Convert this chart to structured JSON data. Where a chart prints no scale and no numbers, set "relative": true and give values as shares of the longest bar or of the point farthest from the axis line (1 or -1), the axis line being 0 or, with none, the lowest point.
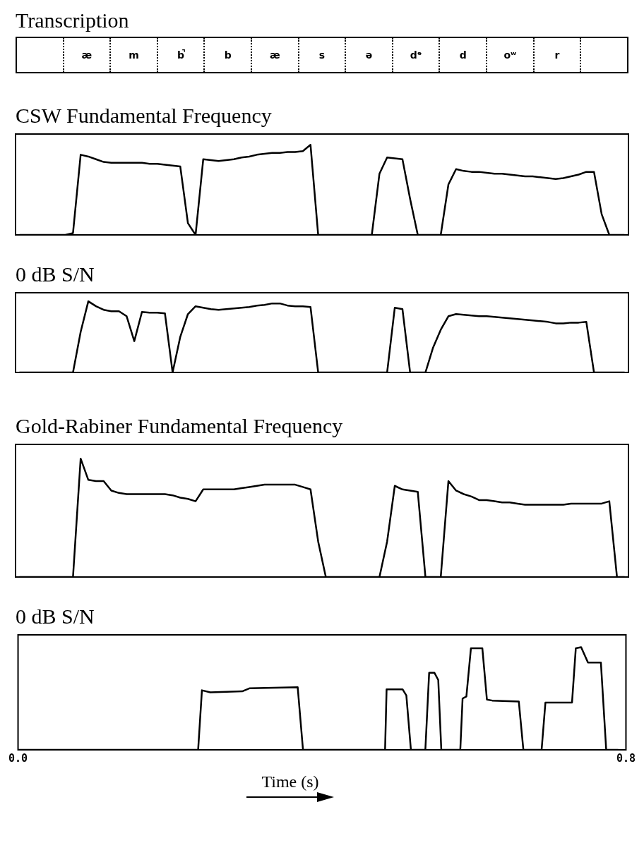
{
  "chart_data": [
    {
      "type": "other",
      "title": "Transcription",
      "annotations": [
        "æ",
        "m",
        "b̚",
        "b",
        "æ",
        "s",
        "ə",
        "dᵊ",
        "d",
        "oʷ",
        "r"
      ]
    },
    {
      "type": "line",
      "title": "CSW Fundamental Frequency",
      "relative": true,
      "categories": [
        null,
        null,
        null,
        null,
        null,
        null,
        null,
        null,
        null,
        null,
        null,
        null,
        null,
        null,
        null,
        null,
        null,
        null,
        null,
        null,
        null,
        null,
        null,
        null,
        null,
        null,
        null,
        null,
        null,
        null,
        null,
        null,
        null,
        null,
        null,
        null,
        null,
        null,
        null,
        null,
        null,
        null,
        null,
        null,
        null,
        null,
        null,
        null,
        null,
        null,
        null,
        null,
        null,
        null,
        null,
        null,
        null,
        null,
        null,
        null,
        null,
        null,
        null,
        null,
        null,
        null,
        null,
        null,
        null,
        null,
        null,
        null,
        null,
        null,
        null,
        null,
        null,
        null,
        null,
        null
      ],
      "series": [
        {
          "color": "#000000",
          "values": [
            0,
            0,
            0,
            0,
            0,
            0,
            0,
            0.02,
            0.89,
            0.87,
            0.84,
            0.81,
            0.8,
            0.8,
            0.8,
            0.8,
            0.8,
            0.79,
            0.79,
            0.78,
            0.77,
            0.76,
            0.13,
            0,
            0.84,
            0.83,
            0.82,
            0.83,
            0.84,
            0.86,
            0.87,
            0.89,
            0.9,
            0.91,
            0.91,
            0.92,
            0.92,
            0.93,
            1,
            0,
            0,
            0,
            0,
            0,
            0,
            0,
            0,
            0.68,
            0.86,
            0.85,
            0.84,
            0.4,
            0,
            0,
            0,
            0,
            0.56,
            0.73,
            0.71,
            0.7,
            0.7,
            0.69,
            0.68,
            0.68,
            0.67,
            0.66,
            0.65,
            0.65,
            0.64,
            0.63,
            0.62,
            0.63,
            0.65,
            0.67,
            0.7,
            0.7,
            0.23,
            0,
            0,
            0
          ]
        }
      ]
    },
    {
      "type": "line",
      "title": "0 dB S/N",
      "relative": true,
      "categories": [
        null,
        null,
        null,
        null,
        null,
        null,
        null,
        null,
        null,
        null,
        null,
        null,
        null,
        null,
        null,
        null,
        null,
        null,
        null,
        null,
        null,
        null,
        null,
        null,
        null,
        null,
        null,
        null,
        null,
        null,
        null,
        null,
        null,
        null,
        null,
        null,
        null,
        null,
        null,
        null,
        null,
        null,
        null,
        null,
        null,
        null,
        null,
        null,
        null,
        null,
        null,
        null,
        null,
        null,
        null,
        null,
        null,
        null,
        null,
        null,
        null,
        null,
        null,
        null,
        null,
        null,
        null,
        null,
        null,
        null,
        null,
        null,
        null,
        null,
        null,
        null,
        null,
        null,
        null,
        null
      ],
      "series": [
        {
          "color": "#000000",
          "values": [
            0,
            0,
            0,
            0,
            0,
            0,
            0,
            0,
            0.57,
            1,
            0.93,
            0.88,
            0.86,
            0.86,
            0.79,
            0.44,
            0.85,
            0.84,
            0.84,
            0.83,
            0,
            0.5,
            0.82,
            0.93,
            0.91,
            0.89,
            0.88,
            0.89,
            0.9,
            0.91,
            0.92,
            0.94,
            0.95,
            0.97,
            0.97,
            0.94,
            0.93,
            0.93,
            0.92,
            0,
            0,
            0,
            0,
            0,
            0,
            0,
            0,
            0,
            0,
            0.91,
            0.89,
            0,
            0,
            0,
            0.35,
            0.6,
            0.79,
            0.82,
            0.81,
            0.8,
            0.79,
            0.79,
            0.78,
            0.77,
            0.76,
            0.75,
            0.74,
            0.73,
            0.72,
            0.71,
            0.69,
            0.69,
            0.7,
            0.7,
            0.71,
            0,
            0,
            0,
            0,
            0
          ]
        }
      ]
    },
    {
      "type": "line",
      "title": "Gold-Rabiner Fundamental Frequency",
      "relative": true,
      "categories": [
        null,
        null,
        null,
        null,
        null,
        null,
        null,
        null,
        null,
        null,
        null,
        null,
        null,
        null,
        null,
        null,
        null,
        null,
        null,
        null,
        null,
        null,
        null,
        null,
        null,
        null,
        null,
        null,
        null,
        null,
        null,
        null,
        null,
        null,
        null,
        null,
        null,
        null,
        null,
        null,
        null,
        null,
        null,
        null,
        null,
        null,
        null,
        null,
        null,
        null,
        null,
        null,
        null,
        null,
        null,
        null,
        null,
        null,
        null,
        null,
        null,
        null,
        null,
        null,
        null,
        null,
        null,
        null,
        null,
        null,
        null,
        null,
        null,
        null,
        null,
        null,
        null,
        null,
        null,
        null
      ],
      "series": [
        {
          "color": "#000000",
          "values": [
            0,
            0,
            0,
            0,
            0,
            0,
            0,
            0,
            1,
            0.82,
            0.81,
            0.81,
            0.73,
            0.71,
            0.7,
            0.7,
            0.7,
            0.7,
            0.7,
            0.7,
            0.69,
            0.67,
            0.66,
            0.64,
            0.74,
            0.74,
            0.74,
            0.74,
            0.74,
            0.75,
            0.76,
            0.77,
            0.78,
            0.78,
            0.78,
            0.78,
            0.78,
            0.76,
            0.74,
            0.3,
            0,
            0,
            0,
            0,
            0,
            0,
            0,
            0,
            0.3,
            0.77,
            0.74,
            0.73,
            0.72,
            0,
            0,
            0,
            0.81,
            0.73,
            0.7,
            0.68,
            0.65,
            0.65,
            0.64,
            0.63,
            0.63,
            0.62,
            0.61,
            0.61,
            0.61,
            0.61,
            0.61,
            0.61,
            0.62,
            0.62,
            0.62,
            0.62,
            0.62,
            0.64,
            0,
            0
          ]
        }
      ]
    },
    {
      "type": "line",
      "title": "0 dB S/N",
      "relative": true,
      "xlabel": "Time (s)",
      "xlim": [
        0,
        0.8
      ],
      "xticks": [
        {
          "value": 0,
          "label": "0.0"
        },
        {
          "value": 0.8,
          "label": "0.8"
        }
      ],
      "tick_labels": "x",
      "series": [
        {
          "color": "#000000",
          "x": [
            0,
            0.237,
            0.242,
            0.253,
            0.295,
            0.305,
            0.368,
            0.375,
            0.483,
            0.485,
            0.506,
            0.511,
            0.517,
            0.536,
            0.541,
            0.548,
            0.553,
            0.557,
            0.582,
            0.585,
            0.59,
            0.596,
            0.611,
            0.617,
            0.624,
            0.659,
            0.665,
            0.689,
            0.694,
            0.729,
            0.734,
            0.741,
            0.75,
            0.767,
            0.774,
            0.79
          ],
          "values": [
            0,
            0,
            0.58,
            0.56,
            0.57,
            0.6,
            0.61,
            0,
            0,
            0.59,
            0.59,
            0.53,
            0,
            0,
            0.75,
            0.75,
            0.68,
            0,
            0,
            0.5,
            0.52,
            0.99,
            0.99,
            0.49,
            0.48,
            0.47,
            0,
            0,
            0.46,
            0.46,
            0.99,
            1,
            0.85,
            0.85,
            0,
            0
          ]
        }
      ]
    }
  ]
}
